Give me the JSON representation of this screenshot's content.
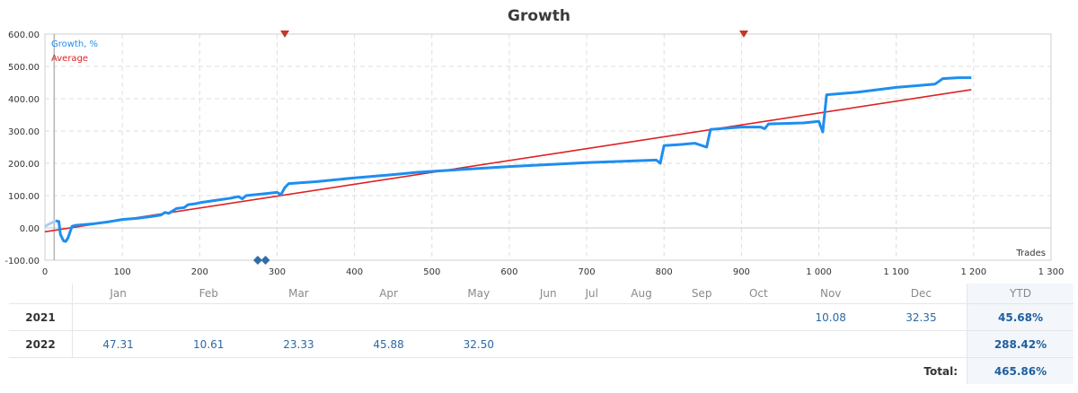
{
  "chart_data": {
    "type": "line",
    "title": "Growth",
    "xlabel": "Trades",
    "ylabel": "",
    "xlim": [
      0,
      1300
    ],
    "ylim": [
      -100,
      600
    ],
    "x_ticks": [
      "0",
      "100",
      "200",
      "300",
      "400",
      "500",
      "600",
      "700",
      "800",
      "900",
      "1 000",
      "1 100",
      "1 200",
      "1 300"
    ],
    "y_ticks": [
      "-100.00",
      "0.00",
      "100.00",
      "200.00",
      "300.00",
      "400.00",
      "500.00",
      "600.00"
    ],
    "grid": true,
    "legend": "top-left",
    "series": [
      {
        "name": "Growth, %",
        "color": "#1e8ef0",
        "points": [
          [
            0,
            5
          ],
          [
            8,
            15
          ],
          [
            14,
            22
          ],
          [
            18,
            20
          ],
          [
            20,
            -20
          ],
          [
            24,
            -40
          ],
          [
            27,
            -42
          ],
          [
            30,
            -30
          ],
          [
            35,
            5
          ],
          [
            40,
            8
          ],
          [
            60,
            12
          ],
          [
            80,
            18
          ],
          [
            100,
            26
          ],
          [
            120,
            30
          ],
          [
            140,
            36
          ],
          [
            150,
            40
          ],
          [
            155,
            48
          ],
          [
            160,
            45
          ],
          [
            170,
            60
          ],
          [
            180,
            63
          ],
          [
            185,
            72
          ],
          [
            195,
            75
          ],
          [
            200,
            78
          ],
          [
            220,
            85
          ],
          [
            240,
            92
          ],
          [
            250,
            97
          ],
          [
            255,
            90
          ],
          [
            260,
            100
          ],
          [
            280,
            105
          ],
          [
            300,
            110
          ],
          [
            305,
            103
          ],
          [
            310,
            125
          ],
          [
            315,
            137
          ],
          [
            350,
            143
          ],
          [
            400,
            155
          ],
          [
            450,
            165
          ],
          [
            480,
            172
          ],
          [
            500,
            175
          ],
          [
            600,
            190
          ],
          [
            700,
            202
          ],
          [
            790,
            210
          ],
          [
            795,
            200
          ],
          [
            800,
            255
          ],
          [
            820,
            258
          ],
          [
            840,
            262
          ],
          [
            855,
            250
          ],
          [
            860,
            305
          ],
          [
            900,
            312
          ],
          [
            925,
            312
          ],
          [
            930,
            307
          ],
          [
            935,
            322
          ],
          [
            980,
            325
          ],
          [
            1000,
            330
          ],
          [
            1005,
            297
          ],
          [
            1010,
            412
          ],
          [
            1050,
            420
          ],
          [
            1100,
            435
          ],
          [
            1150,
            445
          ],
          [
            1160,
            462
          ],
          [
            1180,
            465
          ],
          [
            1197,
            465
          ]
        ]
      },
      {
        "name": "Average",
        "color": "#dd2222",
        "points": [
          [
            0,
            -12
          ],
          [
            1197,
            428
          ]
        ]
      }
    ],
    "markers": [
      {
        "x": 310,
        "y": 600,
        "shape": "down-triangle",
        "color": "#c0392b"
      },
      {
        "x": 903,
        "y": 600,
        "shape": "down-triangle",
        "color": "#c0392b"
      },
      {
        "x": 275,
        "y": -100,
        "shape": "diamond",
        "color": "#2f6ea8"
      },
      {
        "x": 285,
        "y": -100,
        "shape": "diamond",
        "color": "#2f6ea8"
      }
    ]
  },
  "table": {
    "months": [
      "Jan",
      "Feb",
      "Mar",
      "Apr",
      "May",
      "Jun",
      "Jul",
      "Aug",
      "Sep",
      "Oct",
      "Nov",
      "Dec"
    ],
    "ytd_label": "YTD",
    "rows": [
      {
        "year": "2021",
        "values": [
          "",
          "",
          "",
          "",
          "",
          "",
          "",
          "",
          "",
          "",
          "10.08",
          "32.35"
        ],
        "ytd": "45.68%"
      },
      {
        "year": "2022",
        "values": [
          "47.31",
          "10.61",
          "23.33",
          "45.88",
          "32.50",
          "",
          "",
          "",
          "",
          "",
          "",
          ""
        ],
        "ytd": "288.42%"
      }
    ],
    "total_label": "Total:",
    "total_value": "465.86%"
  }
}
